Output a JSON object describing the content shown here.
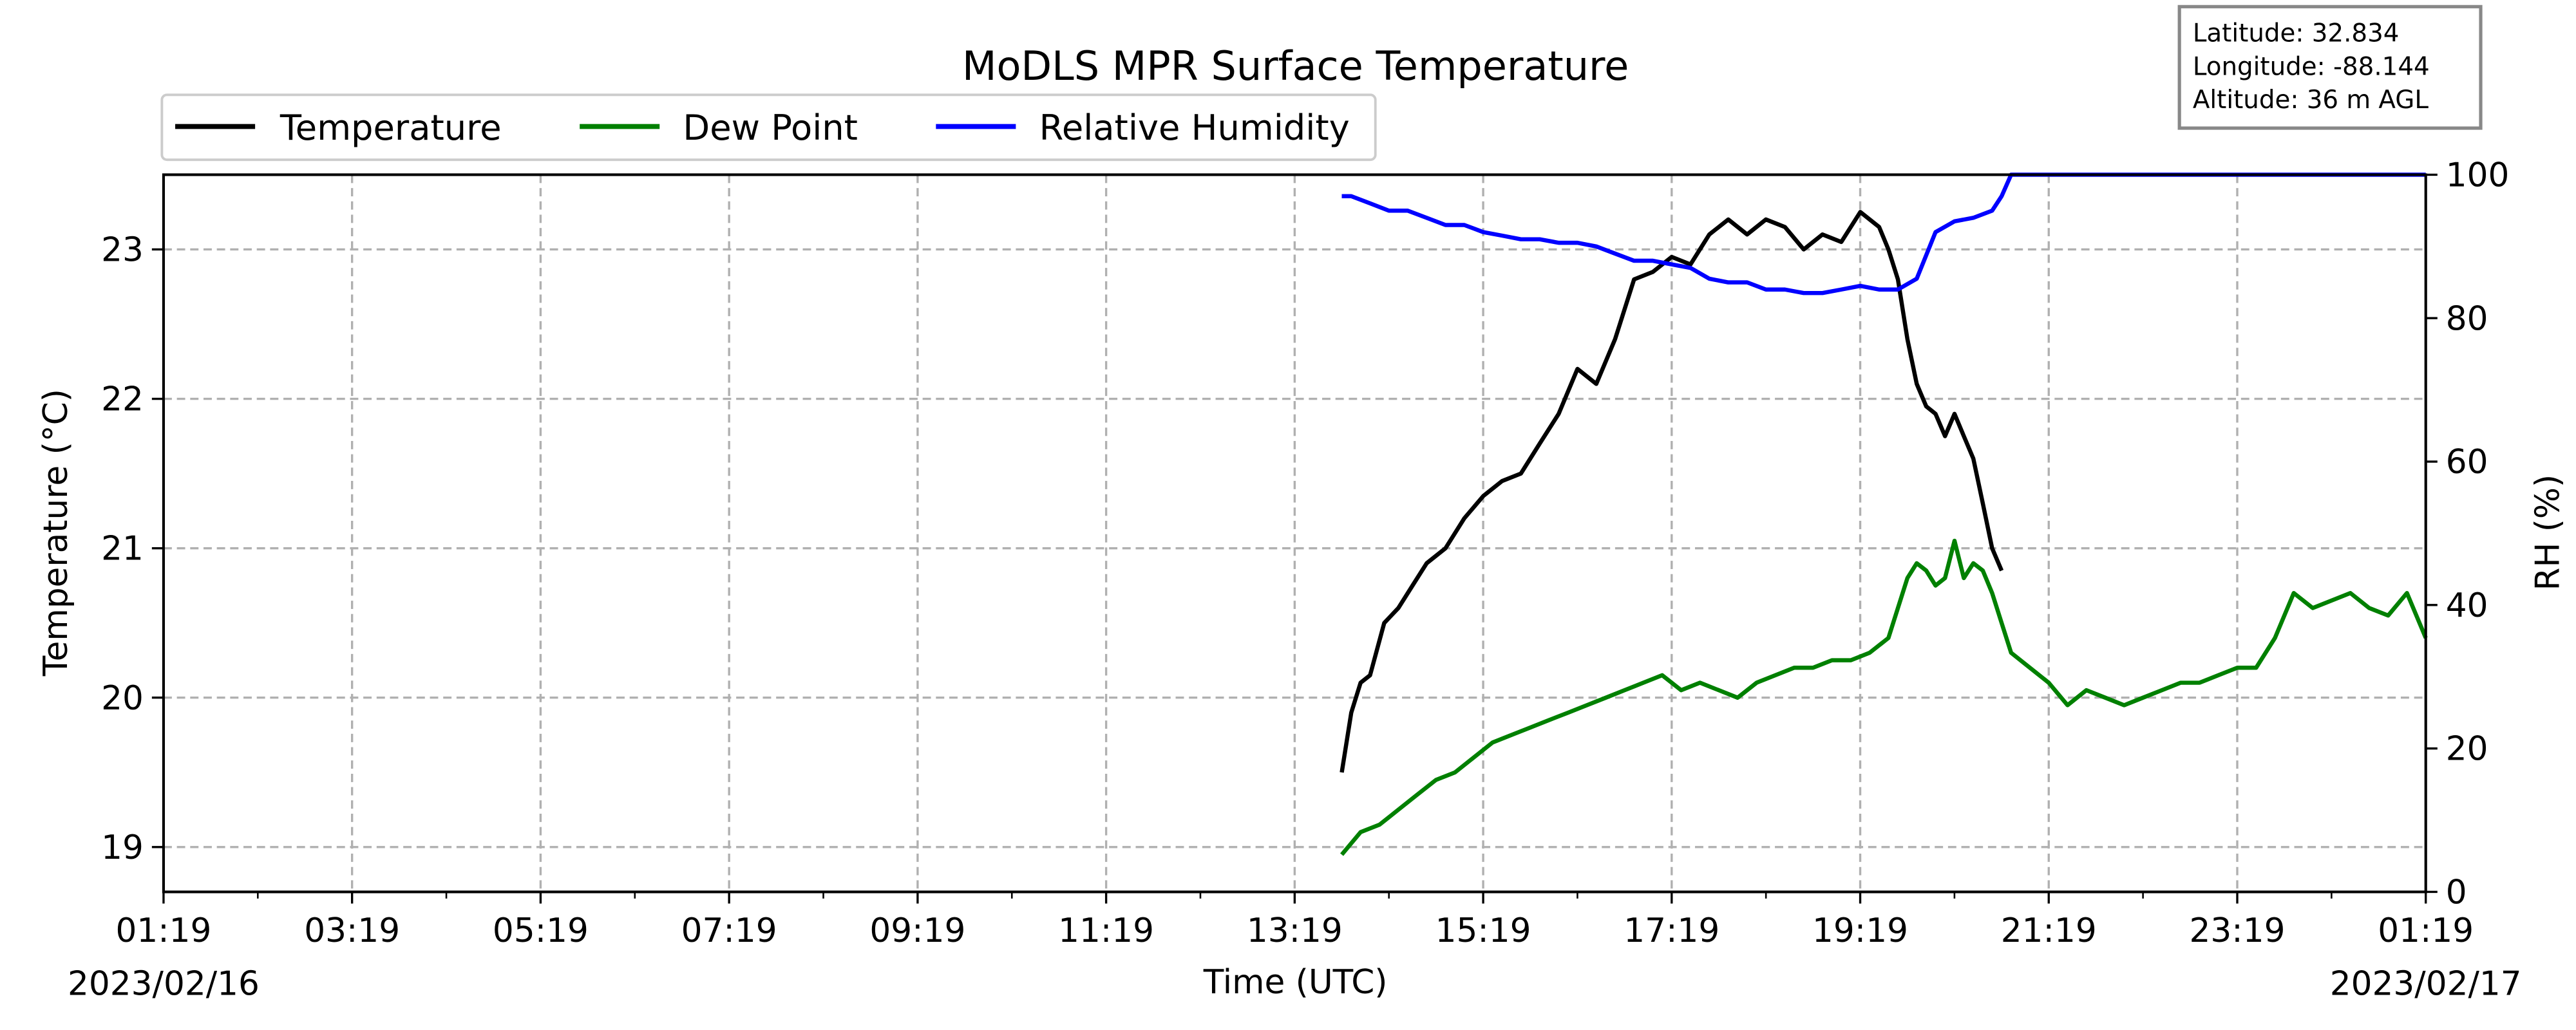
{
  "chart_data": {
    "type": "line",
    "title": "MoDLS MPR Surface Temperature",
    "xlabel": "Time (UTC)",
    "ylabel_left": "Temperature ($^\\circ$C)",
    "ylabel_left_display": "Temperature (°C)",
    "ylabel_right": "RH (%)",
    "x_ticks": [
      "01:19",
      "03:19",
      "05:19",
      "07:19",
      "09:19",
      "11:19",
      "13:19",
      "15:19",
      "17:19",
      "19:19",
      "21:19",
      "23:19",
      "01:19"
    ],
    "x_range_hours": [
      0,
      24
    ],
    "dates": {
      "start": "2023/02/16",
      "end": "2023/02/17"
    },
    "ylim_left": [
      18.7,
      23.5
    ],
    "yticks_left": [
      19,
      20,
      21,
      22,
      23
    ],
    "ylim_right": [
      0,
      100
    ],
    "yticks_right": [
      0,
      20,
      40,
      60,
      80,
      100
    ],
    "grid": true,
    "legend_position": "top-left",
    "info_box": {
      "latitude": "Latitude: 32.834",
      "longitude": "Longitude: -88.144",
      "altitude": "Altitude: 36 m AGL"
    },
    "series": [
      {
        "name": "Temperature",
        "axis": "left",
        "color": "#000000",
        "x_hours": [
          12.5,
          12.6,
          12.7,
          12.8,
          12.95,
          13.1,
          13.25,
          13.4,
          13.6,
          13.8,
          14.0,
          14.2,
          14.4,
          14.6,
          14.8,
          15.0,
          15.2,
          15.4,
          15.6,
          15.8,
          16.0,
          16.2,
          16.4,
          16.6,
          16.8,
          17.0,
          17.2,
          17.4,
          17.6,
          17.8,
          18.0,
          18.2,
          18.3,
          18.4,
          18.5,
          18.6,
          18.7,
          18.8,
          18.9,
          19.0,
          19.1,
          19.2,
          19.3,
          19.4,
          19.5
        ],
        "values": [
          19.5,
          19.9,
          20.1,
          20.15,
          20.5,
          20.6,
          20.75,
          20.9,
          21.0,
          21.2,
          21.35,
          21.45,
          21.5,
          21.7,
          21.9,
          22.2,
          22.1,
          22.4,
          22.8,
          22.85,
          22.95,
          22.9,
          23.1,
          23.2,
          23.1,
          23.2,
          23.15,
          23.0,
          23.1,
          23.05,
          23.25,
          23.15,
          23.0,
          22.8,
          22.4,
          22.1,
          21.95,
          21.9,
          21.75,
          21.9,
          21.75,
          21.6,
          21.3,
          21.0,
          20.85
        ]
      },
      {
        "name": "Dew Point",
        "axis": "left",
        "color": "#008000",
        "x_hours": [
          12.5,
          12.7,
          12.9,
          13.1,
          13.3,
          13.5,
          13.7,
          13.9,
          14.1,
          14.3,
          14.5,
          14.7,
          14.9,
          15.1,
          15.3,
          15.5,
          15.7,
          15.9,
          16.1,
          16.3,
          16.5,
          16.7,
          16.9,
          17.1,
          17.3,
          17.5,
          17.7,
          17.9,
          18.1,
          18.3,
          18.5,
          18.6,
          18.7,
          18.8,
          18.9,
          19.0,
          19.1,
          19.2,
          19.3,
          19.4,
          19.5,
          19.6,
          19.8,
          20.0,
          20.2,
          20.4,
          20.6,
          20.8,
          21.0,
          21.2,
          21.4,
          21.6,
          21.8,
          22.0,
          22.2,
          22.4,
          22.6,
          22.8,
          23.0,
          23.2,
          23.4,
          23.6,
          23.8,
          24.0
        ],
        "values": [
          18.95,
          19.1,
          19.15,
          19.25,
          19.35,
          19.45,
          19.5,
          19.6,
          19.7,
          19.75,
          19.8,
          19.85,
          19.9,
          19.95,
          20.0,
          20.05,
          20.1,
          20.15,
          20.05,
          20.1,
          20.05,
          20.0,
          20.1,
          20.15,
          20.2,
          20.2,
          20.25,
          20.25,
          20.3,
          20.4,
          20.8,
          20.9,
          20.85,
          20.75,
          20.8,
          21.05,
          20.8,
          20.9,
          20.85,
          20.7,
          20.5,
          20.3,
          20.2,
          20.1,
          19.95,
          20.05,
          20.0,
          19.95,
          20.0,
          20.05,
          20.1,
          20.1,
          20.15,
          20.2,
          20.2,
          20.4,
          20.7,
          20.6,
          20.65,
          20.7,
          20.6,
          20.55,
          20.7,
          20.4
        ]
      },
      {
        "name": "Relative Humidity",
        "axis": "right",
        "color": "#0000ff",
        "x_hours": [
          12.5,
          12.6,
          12.8,
          13.0,
          13.2,
          13.4,
          13.6,
          13.8,
          14.0,
          14.2,
          14.4,
          14.6,
          14.8,
          15.0,
          15.2,
          15.4,
          15.6,
          15.8,
          16.0,
          16.2,
          16.4,
          16.6,
          16.8,
          17.0,
          17.2,
          17.4,
          17.6,
          17.8,
          18.0,
          18.2,
          18.4,
          18.6,
          18.8,
          19.0,
          19.2,
          19.4,
          19.5,
          19.6,
          20.0,
          21.0,
          22.0,
          23.0,
          24.0
        ],
        "values": [
          97,
          97,
          96,
          95,
          95,
          94,
          93,
          93,
          92,
          91.5,
          91,
          91,
          90.5,
          90.5,
          90,
          89,
          88,
          88,
          87.5,
          87,
          85.5,
          85,
          85,
          84,
          84,
          83.5,
          83.5,
          84,
          84.5,
          84,
          84,
          85.5,
          92,
          93.5,
          94,
          95,
          97,
          100,
          100,
          100,
          100,
          100,
          100
        ]
      }
    ]
  }
}
